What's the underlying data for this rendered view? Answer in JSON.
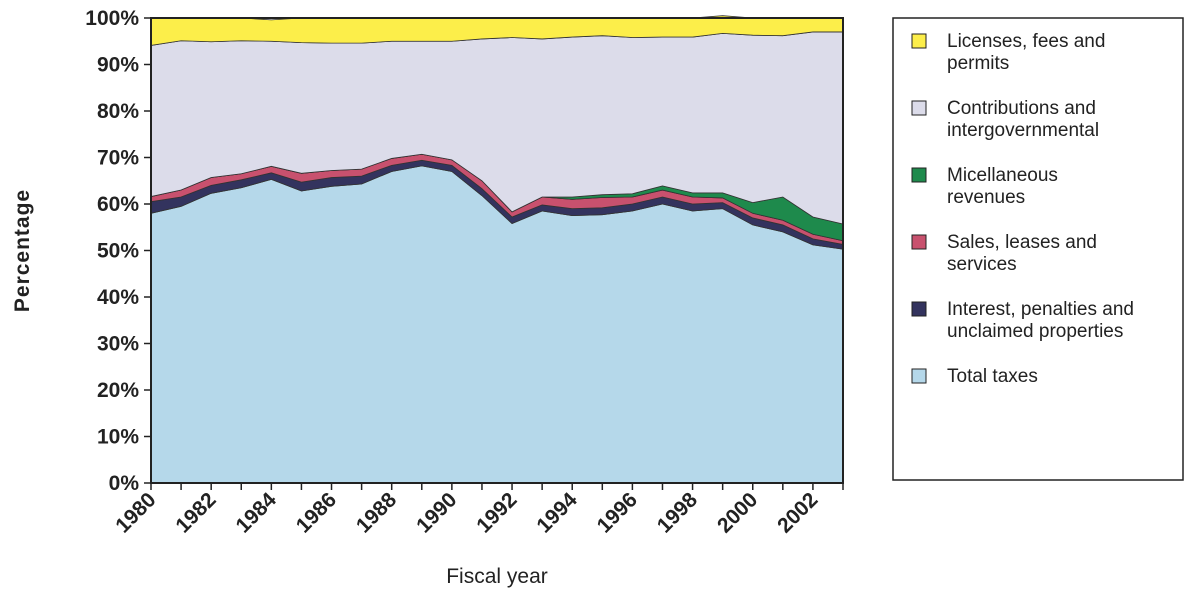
{
  "chart_data": {
    "type": "area",
    "stacked": true,
    "normalized": true,
    "xlabel": "Fiscal year",
    "ylabel": "Percentage",
    "ylim": [
      0,
      100
    ],
    "y_ticks": [
      "0%",
      "10%",
      "20%",
      "30%",
      "40%",
      "50%",
      "60%",
      "70%",
      "80%",
      "90%",
      "100%"
    ],
    "x_tick_labels": [
      "1980",
      "1982",
      "1984",
      "1986",
      "1988",
      "1990",
      "1992",
      "1994",
      "1996",
      "1998",
      "2000",
      "2002"
    ],
    "x": [
      1980,
      1981,
      1982,
      1983,
      1984,
      1985,
      1986,
      1987,
      1988,
      1989,
      1990,
      1991,
      1992,
      1993,
      1994,
      1995,
      1996,
      1997,
      1998,
      1999,
      2000,
      2001,
      2002,
      2003
    ],
    "legend_position": "right",
    "series": [
      {
        "name": "Total taxes",
        "color": "#b5d8ea",
        "values": [
          58.0,
          59.5,
          62.3,
          63.5,
          65.3,
          62.8,
          63.8,
          64.3,
          67.0,
          68.2,
          67.0,
          61.8,
          55.8,
          58.5,
          57.5,
          57.7,
          58.5,
          60.0,
          58.5,
          59.0,
          55.5,
          54.0,
          51.2,
          50.3
        ]
      },
      {
        "name": "Interest, penalties and unclaimed properties",
        "color": "#33335e",
        "values": [
          2.5,
          2.0,
          1.7,
          1.7,
          1.4,
          1.9,
          1.9,
          1.7,
          1.3,
          1.2,
          1.3,
          1.5,
          1.4,
          1.3,
          1.5,
          1.5,
          1.5,
          1.5,
          1.5,
          1.3,
          1.5,
          1.5,
          1.3,
          1.0
        ]
      },
      {
        "name": "Sales, leases and services",
        "color": "#c8516e",
        "values": [
          1.1,
          1.5,
          1.7,
          1.3,
          1.4,
          1.9,
          1.5,
          1.5,
          1.5,
          1.3,
          1.2,
          1.7,
          1.1,
          1.7,
          2.0,
          2.2,
          1.5,
          1.5,
          1.5,
          1.0,
          1.0,
          1.0,
          1.0,
          0.8
        ]
      },
      {
        "name": "Micellaneous revenues",
        "color": "#1e8a4c",
        "values": [
          0,
          0,
          0,
          0,
          0,
          0,
          0,
          0,
          0,
          0,
          0,
          0,
          0,
          0,
          0.5,
          0.6,
          0.7,
          0.9,
          0.9,
          1.1,
          2.3,
          5.0,
          3.7,
          3.6
        ]
      },
      {
        "name": "Contributions and intergovernmental",
        "color": "#dcdcea",
        "values": [
          32.5,
          32.1,
          29.2,
          28.6,
          26.9,
          28.1,
          27.4,
          27.1,
          25.2,
          24.3,
          25.5,
          30.5,
          37.5,
          34.0,
          34.4,
          34.2,
          33.6,
          32.0,
          33.5,
          34.3,
          36.0,
          34.7,
          39.8,
          41.3
        ]
      },
      {
        "name": "Licenses, fees and permits",
        "color": "#fcee4a",
        "values": [
          5.9,
          4.9,
          5.1,
          4.9,
          4.6,
          5.3,
          5.4,
          5.4,
          5.0,
          5.0,
          5.0,
          4.5,
          4.2,
          4.5,
          4.1,
          3.8,
          4.2,
          4.1,
          4.1,
          3.8,
          3.7,
          3.8,
          3.0,
          3.0
        ]
      }
    ],
    "legend": [
      {
        "label": "Licenses, fees and permits",
        "color": "#fcee4a"
      },
      {
        "label": "Contributions and intergovernmental",
        "color": "#dcdcea"
      },
      {
        "label": "Micellaneous revenues",
        "color": "#1e8a4c"
      },
      {
        "label": "Sales, leases and services",
        "color": "#c8516e"
      },
      {
        "label": "Interest, penalties and unclaimed properties",
        "color": "#33335e"
      },
      {
        "label": "Total taxes",
        "color": "#b5d8ea"
      }
    ]
  }
}
